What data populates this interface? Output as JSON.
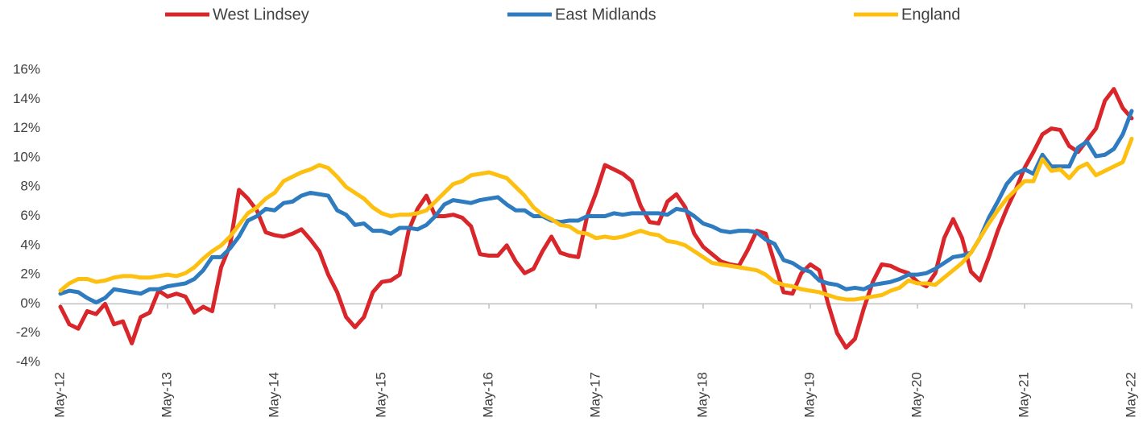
{
  "chart_data": {
    "type": "line",
    "categories": [
      "May-12",
      null,
      null,
      null,
      null,
      null,
      null,
      null,
      null,
      null,
      null,
      null,
      "May-13",
      null,
      null,
      null,
      null,
      null,
      null,
      null,
      null,
      null,
      null,
      null,
      "May-14",
      null,
      null,
      null,
      null,
      null,
      null,
      null,
      null,
      null,
      null,
      null,
      "May-15",
      null,
      null,
      null,
      null,
      null,
      null,
      null,
      null,
      null,
      null,
      null,
      "May-16",
      null,
      null,
      null,
      null,
      null,
      null,
      null,
      null,
      null,
      null,
      null,
      "May-17",
      null,
      null,
      null,
      null,
      null,
      null,
      null,
      null,
      null,
      null,
      null,
      "May-18",
      null,
      null,
      null,
      null,
      null,
      null,
      null,
      null,
      null,
      null,
      null,
      "May-19",
      null,
      null,
      null,
      null,
      null,
      null,
      null,
      null,
      null,
      null,
      null,
      "May-20",
      null,
      null,
      null,
      null,
      null,
      null,
      null,
      null,
      null,
      null,
      null,
      "May-21",
      null,
      null,
      null,
      null,
      null,
      null,
      null,
      null,
      null,
      null,
      null,
      "May-22"
    ],
    "series": [
      {
        "name": "West Lindsey",
        "color": "#d9262b",
        "values": [
          -0.2,
          -1.4,
          -1.7,
          -0.5,
          -0.7,
          0.0,
          -1.4,
          -1.2,
          -2.7,
          -0.9,
          -0.6,
          0.9,
          0.5,
          0.7,
          0.5,
          -0.6,
          -0.2,
          -0.5,
          2.5,
          4.0,
          7.8,
          7.2,
          6.4,
          4.9,
          4.7,
          4.6,
          4.8,
          5.1,
          4.4,
          3.6,
          2.0,
          0.8,
          -0.9,
          -1.6,
          -0.9,
          0.8,
          1.5,
          1.6,
          2.0,
          5.0,
          6.5,
          7.4,
          6.0,
          6.0,
          6.1,
          5.9,
          5.3,
          3.4,
          3.3,
          3.3,
          4.0,
          2.9,
          2.1,
          2.4,
          3.6,
          4.6,
          3.5,
          3.3,
          3.2,
          6.0,
          7.6,
          9.5,
          9.2,
          8.9,
          8.4,
          6.7,
          5.6,
          5.5,
          7.0,
          7.5,
          6.6,
          4.8,
          3.9,
          3.4,
          2.9,
          2.7,
          2.6,
          3.7,
          5.0,
          4.8,
          2.8,
          0.8,
          0.7,
          2.1,
          2.7,
          2.3,
          0.0,
          -2.0,
          -3.0,
          -2.4,
          -0.3,
          1.5,
          2.7,
          2.6,
          2.3,
          2.1,
          1.5,
          1.2,
          2.1,
          4.5,
          5.8,
          4.5,
          2.2,
          1.6,
          3.2,
          5.0,
          6.5,
          7.8,
          9.3,
          10.4,
          11.6,
          12.0,
          11.9,
          10.8,
          10.4,
          11.2,
          12.0,
          13.9,
          14.7,
          13.4,
          12.7
        ]
      },
      {
        "name": "East Midlands",
        "color": "#2e7bbf",
        "values": [
          0.7,
          0.9,
          0.8,
          0.4,
          0.1,
          0.4,
          1.0,
          0.9,
          0.8,
          0.7,
          1.0,
          1.0,
          1.2,
          1.3,
          1.4,
          1.7,
          2.3,
          3.2,
          3.2,
          3.8,
          4.6,
          5.7,
          6.0,
          6.5,
          6.4,
          6.9,
          7.0,
          7.4,
          7.6,
          7.5,
          7.4,
          6.4,
          6.1,
          5.4,
          5.5,
          5.0,
          5.0,
          4.8,
          5.2,
          5.2,
          5.1,
          5.4,
          6.0,
          6.8,
          7.1,
          7.0,
          6.9,
          7.1,
          7.2,
          7.3,
          6.8,
          6.4,
          6.4,
          6.0,
          6.0,
          5.7,
          5.6,
          5.7,
          5.7,
          6.0,
          6.0,
          6.0,
          6.2,
          6.1,
          6.2,
          6.2,
          6.2,
          6.2,
          6.1,
          6.5,
          6.4,
          6.0,
          5.5,
          5.3,
          5.0,
          4.9,
          5.0,
          5.0,
          4.9,
          4.4,
          4.1,
          3.0,
          2.8,
          2.4,
          2.2,
          1.6,
          1.4,
          1.3,
          1.0,
          1.1,
          1.0,
          1.3,
          1.4,
          1.5,
          1.7,
          2.0,
          2.0,
          2.1,
          2.4,
          2.8,
          3.2,
          3.3,
          3.5,
          4.5,
          5.9,
          7.0,
          8.2,
          8.9,
          9.2,
          8.9,
          10.2,
          9.4,
          9.4,
          9.4,
          10.7,
          11.1,
          10.1,
          10.2,
          10.6,
          11.6,
          13.2
        ]
      },
      {
        "name": "England",
        "color": "#fdc010",
        "values": [
          0.9,
          1.4,
          1.7,
          1.7,
          1.5,
          1.6,
          1.8,
          1.9,
          1.9,
          1.8,
          1.8,
          1.9,
          2.0,
          1.9,
          2.1,
          2.5,
          3.1,
          3.6,
          4.0,
          4.6,
          5.4,
          6.2,
          6.6,
          7.2,
          7.6,
          8.4,
          8.7,
          9.0,
          9.2,
          9.5,
          9.3,
          8.7,
          8.0,
          7.6,
          7.2,
          6.6,
          6.2,
          6.0,
          6.1,
          6.1,
          6.2,
          6.4,
          7.0,
          7.6,
          8.2,
          8.4,
          8.8,
          8.9,
          9.0,
          8.8,
          8.6,
          8.0,
          7.4,
          6.6,
          6.1,
          5.8,
          5.4,
          5.3,
          4.9,
          4.8,
          4.5,
          4.6,
          4.5,
          4.6,
          4.8,
          5.0,
          4.8,
          4.7,
          4.3,
          4.2,
          4.0,
          3.6,
          3.2,
          2.8,
          2.7,
          2.6,
          2.5,
          2.4,
          2.3,
          2.0,
          1.5,
          1.3,
          1.2,
          1.0,
          0.9,
          0.8,
          0.6,
          0.4,
          0.3,
          0.3,
          0.4,
          0.5,
          0.6,
          0.9,
          1.1,
          1.6,
          1.4,
          1.4,
          1.3,
          1.8,
          2.3,
          2.8,
          3.5,
          4.5,
          5.5,
          6.4,
          7.2,
          7.8,
          8.4,
          8.4,
          9.9,
          9.1,
          9.2,
          8.6,
          9.3,
          9.6,
          8.8,
          9.1,
          9.4,
          9.7,
          11.3
        ]
      }
    ],
    "ylim": [
      -4,
      16
    ],
    "yticks": [
      {
        "value": -4,
        "label": "-4%"
      },
      {
        "value": -2,
        "label": "-2%"
      },
      {
        "value": 0,
        "label": "0%"
      },
      {
        "value": 2,
        "label": "2%"
      },
      {
        "value": 4,
        "label": "4%"
      },
      {
        "value": 6,
        "label": "6%"
      },
      {
        "value": 8,
        "label": "8%"
      },
      {
        "value": 10,
        "label": "10%"
      },
      {
        "value": 12,
        "label": "12%"
      },
      {
        "value": 14,
        "label": "14%"
      },
      {
        "value": 16,
        "label": "16%"
      }
    ],
    "grid": false,
    "legend": "top"
  }
}
